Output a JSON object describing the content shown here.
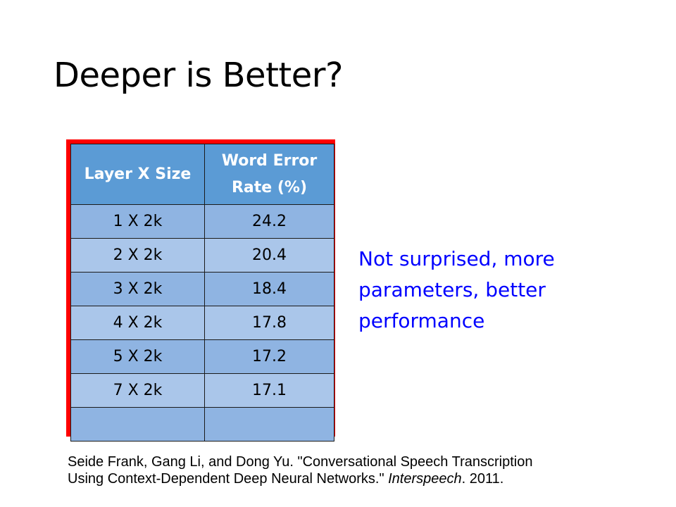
{
  "slide": {
    "title": "Deeper is Better?",
    "comment": "Not surprised, more parameters, better performance",
    "citation": {
      "line1": "Seide Frank, Gang Li, and Dong Yu. \"Conversational Speech Transcription",
      "line2_start": "Using Context-Dependent Deep Neural Networks.\" ",
      "venue": "Interspeech",
      "line2_end": ". 2011."
    }
  },
  "table": {
    "headers": [
      "Layer X Size",
      "Word Error Rate (%)"
    ],
    "rows": [
      [
        "1 X 2k",
        "24.2"
      ],
      [
        "2 X 2k",
        "20.4"
      ],
      [
        "3 X 2k",
        "18.4"
      ],
      [
        "4 X 2k",
        "17.8"
      ],
      [
        "5 X 2k",
        "17.2"
      ],
      [
        "7 X 2k",
        "17.1"
      ],
      [
        "",
        ""
      ]
    ]
  },
  "colors": {
    "frame": "#ff0000",
    "header": "#5b9bd5",
    "row_odd": "#8fb4e2",
    "row_even": "#aac6ea",
    "comment": "#0000ff"
  }
}
